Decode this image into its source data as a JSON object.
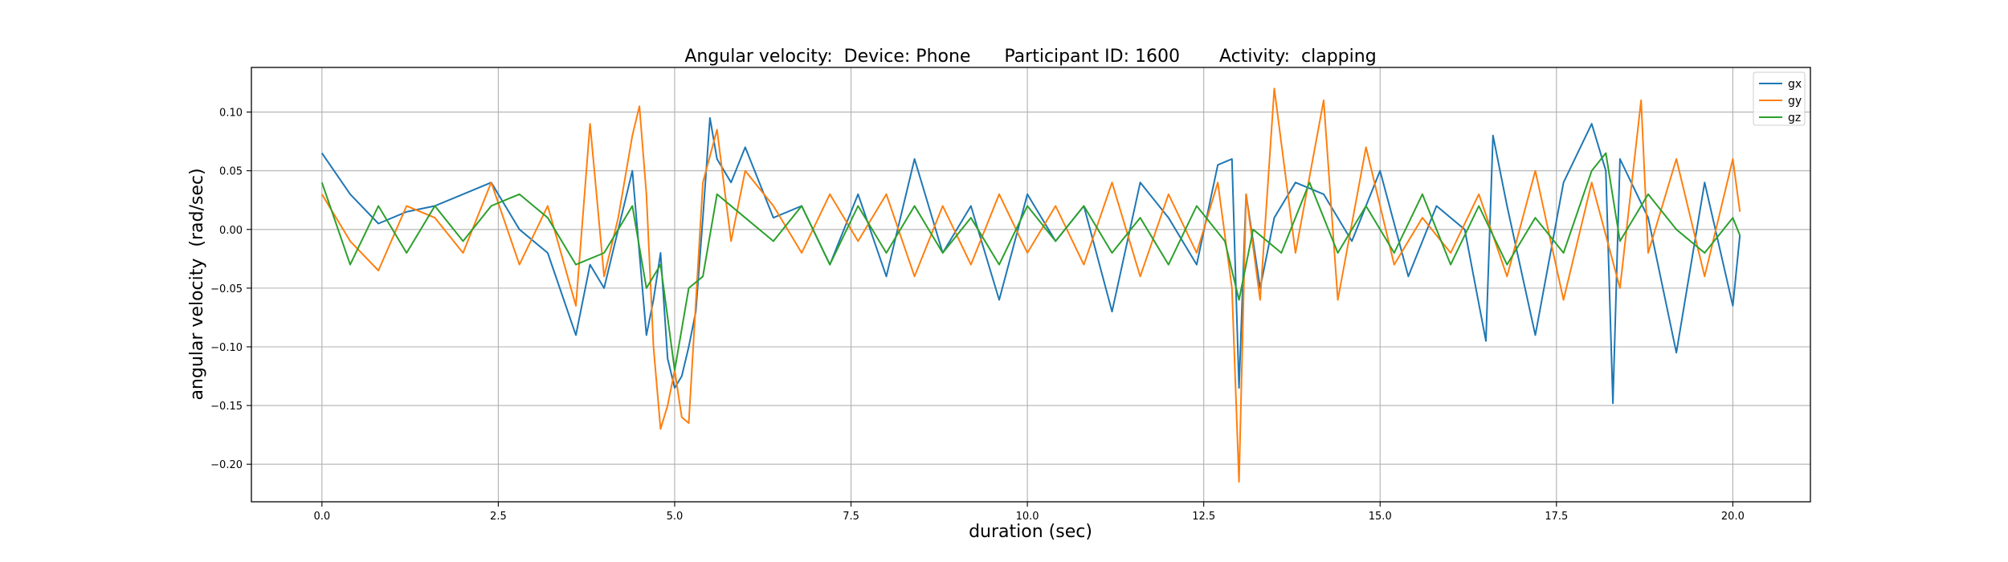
{
  "chart_data": {
    "type": "line",
    "title": "Angular velocity:  Device: Phone      Participant ID: 1600       Activity:  clapping",
    "xlabel": "duration  (sec)",
    "ylabel": "angular velocity  (rad/sec)",
    "xlim": [
      -1.0,
      21.1
    ],
    "ylim": [
      -0.232,
      0.138
    ],
    "x_ticks": [
      0.0,
      2.5,
      5.0,
      7.5,
      10.0,
      12.5,
      15.0,
      17.5,
      20.0
    ],
    "x_tick_labels": [
      "0.0",
      "2.5",
      "5.0",
      "7.5",
      "10.0",
      "12.5",
      "15.0",
      "17.5",
      "20.0"
    ],
    "y_ticks": [
      -0.2,
      -0.15,
      -0.1,
      -0.05,
      0.0,
      0.05,
      0.1
    ],
    "y_tick_labels": [
      "−0.20",
      "−0.15",
      "−0.10",
      "−0.05",
      "0.00",
      "0.05",
      "0.10"
    ],
    "grid": true,
    "legend_position": "top-right",
    "series": [
      {
        "name": "gx",
        "color": "#1f77b4",
        "x": [
          0.0,
          0.4,
          0.8,
          1.2,
          1.6,
          2.0,
          2.4,
          2.8,
          3.2,
          3.6,
          3.8,
          4.0,
          4.4,
          4.6,
          4.7,
          4.8,
          4.9,
          5.0,
          5.1,
          5.2,
          5.3,
          5.4,
          5.5,
          5.6,
          5.8,
          6.0,
          6.4,
          6.8,
          7.2,
          7.6,
          8.0,
          8.4,
          8.8,
          9.2,
          9.6,
          10.0,
          10.4,
          10.8,
          11.2,
          11.6,
          12.0,
          12.4,
          12.7,
          12.9,
          13.0,
          13.1,
          13.3,
          13.5,
          13.8,
          14.2,
          14.6,
          15.0,
          15.4,
          15.8,
          16.2,
          16.5,
          16.6,
          16.8,
          17.2,
          17.6,
          18.0,
          18.2,
          18.3,
          18.4,
          18.8,
          19.2,
          19.6,
          20.0,
          20.1
        ],
        "values": [
          0.065,
          0.03,
          0.005,
          0.015,
          0.02,
          0.03,
          0.04,
          0.0,
          -0.02,
          -0.09,
          -0.03,
          -0.05,
          0.05,
          -0.09,
          -0.06,
          -0.02,
          -0.11,
          -0.135,
          -0.125,
          -0.1,
          -0.07,
          0.01,
          0.095,
          0.06,
          0.04,
          0.07,
          0.01,
          0.02,
          -0.03,
          0.03,
          -0.04,
          0.06,
          -0.02,
          0.02,
          -0.06,
          0.03,
          -0.01,
          0.02,
          -0.07,
          0.04,
          0.01,
          -0.03,
          0.055,
          0.06,
          -0.135,
          0.03,
          -0.05,
          0.01,
          0.04,
          0.03,
          -0.01,
          0.05,
          -0.04,
          0.02,
          0.0,
          -0.095,
          0.08,
          0.02,
          -0.09,
          0.04,
          0.09,
          0.05,
          -0.148,
          0.06,
          0.01,
          -0.105,
          0.04,
          -0.065,
          -0.005
        ]
      },
      {
        "name": "gy",
        "color": "#ff7f0e",
        "x": [
          0.0,
          0.4,
          0.8,
          1.2,
          1.6,
          2.0,
          2.4,
          2.8,
          3.2,
          3.6,
          3.8,
          4.0,
          4.2,
          4.4,
          4.5,
          4.6,
          4.7,
          4.8,
          4.9,
          5.0,
          5.1,
          5.2,
          5.4,
          5.6,
          5.8,
          6.0,
          6.4,
          6.8,
          7.2,
          7.6,
          8.0,
          8.4,
          8.8,
          9.2,
          9.6,
          10.0,
          10.4,
          10.8,
          11.2,
          11.6,
          12.0,
          12.4,
          12.7,
          12.9,
          13.0,
          13.1,
          13.3,
          13.5,
          13.8,
          14.2,
          14.4,
          14.8,
          15.2,
          15.6,
          16.0,
          16.4,
          16.8,
          17.2,
          17.6,
          18.0,
          18.4,
          18.7,
          18.8,
          19.2,
          19.6,
          20.0,
          20.1
        ],
        "values": [
          0.03,
          -0.01,
          -0.035,
          0.02,
          0.01,
          -0.02,
          0.04,
          -0.03,
          0.02,
          -0.065,
          0.09,
          -0.04,
          0.01,
          0.08,
          0.105,
          0.03,
          -0.1,
          -0.17,
          -0.15,
          -0.12,
          -0.16,
          -0.165,
          0.04,
          0.085,
          -0.01,
          0.05,
          0.02,
          -0.02,
          0.03,
          -0.01,
          0.03,
          -0.04,
          0.02,
          -0.03,
          0.03,
          -0.02,
          0.02,
          -0.03,
          0.04,
          -0.04,
          0.03,
          -0.02,
          0.04,
          -0.05,
          -0.215,
          0.03,
          -0.06,
          0.12,
          -0.02,
          0.11,
          -0.06,
          0.07,
          -0.03,
          0.01,
          -0.02,
          0.03,
          -0.04,
          0.05,
          -0.06,
          0.04,
          -0.05,
          0.11,
          -0.02,
          0.06,
          -0.04,
          0.06,
          0.015
        ]
      },
      {
        "name": "gz",
        "color": "#2ca02c",
        "x": [
          0.0,
          0.4,
          0.8,
          1.2,
          1.6,
          2.0,
          2.4,
          2.8,
          3.2,
          3.6,
          4.0,
          4.4,
          4.6,
          4.8,
          5.0,
          5.2,
          5.4,
          5.6,
          6.0,
          6.4,
          6.8,
          7.2,
          7.6,
          8.0,
          8.4,
          8.8,
          9.2,
          9.6,
          10.0,
          10.4,
          10.8,
          11.2,
          11.6,
          12.0,
          12.4,
          12.8,
          13.0,
          13.2,
          13.6,
          14.0,
          14.4,
          14.8,
          15.2,
          15.6,
          16.0,
          16.4,
          16.8,
          17.2,
          17.6,
          18.0,
          18.2,
          18.4,
          18.8,
          19.2,
          19.6,
          20.0,
          20.1
        ],
        "values": [
          0.04,
          -0.03,
          0.02,
          -0.02,
          0.02,
          -0.01,
          0.02,
          0.03,
          0.01,
          -0.03,
          -0.02,
          0.02,
          -0.05,
          -0.03,
          -0.12,
          -0.05,
          -0.04,
          0.03,
          0.01,
          -0.01,
          0.02,
          -0.03,
          0.02,
          -0.02,
          0.02,
          -0.02,
          0.01,
          -0.03,
          0.02,
          -0.01,
          0.02,
          -0.02,
          0.01,
          -0.03,
          0.02,
          -0.01,
          -0.06,
          0.0,
          -0.02,
          0.04,
          -0.02,
          0.02,
          -0.02,
          0.03,
          -0.03,
          0.02,
          -0.03,
          0.01,
          -0.02,
          0.05,
          0.065,
          -0.01,
          0.03,
          0.0,
          -0.02,
          0.01,
          -0.005
        ]
      }
    ]
  }
}
